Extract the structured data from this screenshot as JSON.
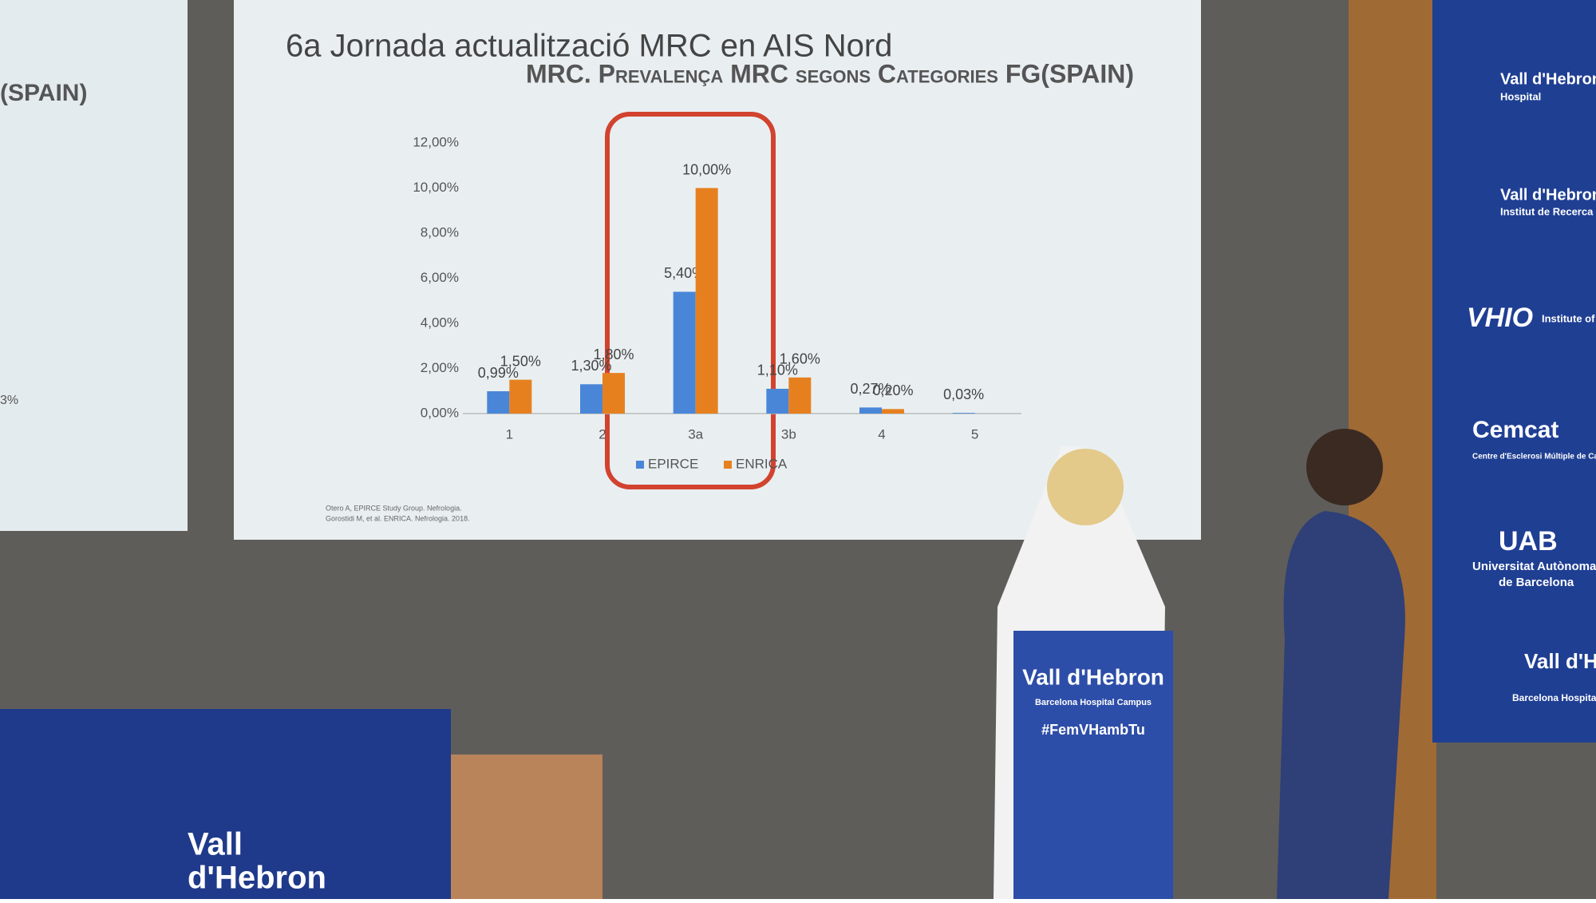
{
  "slide": {
    "title": "6a Jornada actualització MRC en AIS Nord",
    "references": [
      "Otero A, EPIRCE Study Group. Nefrologia.",
      "Gorostidi M, et al. ENRICA. Nefrologia. 2018."
    ],
    "left_slide": [
      "(SPAIN)",
      "3%"
    ]
  },
  "banners": [
    "Vall d'Hebron",
    "Hospital",
    "Vall d'Hebron",
    "Institut de Recerca",
    "VHIO",
    "Institute of Oncology",
    "Cemcat",
    "Centre d'Esclerosi Múltiple de Catalunya",
    "UAB",
    "Universitat Autònoma",
    "de Barcelona",
    "Vall d'Hebron",
    "Barcelona Hospital"
  ],
  "podium": [
    "Vall d'Hebron",
    "Barcelona Hospital Campus",
    "#FemVHambTu"
  ],
  "desk": [
    "Vall",
    "d'Hebron"
  ],
  "chart_data": {
    "type": "bar",
    "title": "MRC. Prevalença MRC segons Categories FG(SPAIN)",
    "categories": [
      "1",
      "2",
      "3a",
      "3b",
      "4",
      "5"
    ],
    "series": [
      {
        "name": "EPIRCE",
        "color": "#4a86d8",
        "values": [
          0.99,
          1.3,
          5.4,
          1.1,
          0.27,
          0.03
        ],
        "value_labels": [
          "0,99%",
          "1,30%",
          "5,40%",
          "1,10%",
          "0,27%",
          "0,03%"
        ]
      },
      {
        "name": "ENRICA",
        "color": "#e6801f",
        "values": [
          1.5,
          1.8,
          10.0,
          1.6,
          0.2,
          null
        ],
        "value_labels": [
          "1,50%",
          "1,80%",
          "10,00%",
          "1,60%",
          "0,20%",
          null
        ]
      }
    ],
    "ylim": [
      0,
      12
    ],
    "yticks": [
      {
        "value": 0,
        "label": "0,00%"
      },
      {
        "value": 2,
        "label": "2,00%"
      },
      {
        "value": 4,
        "label": "4,00%"
      },
      {
        "value": 6,
        "label": "6,00%"
      },
      {
        "value": 8,
        "label": "8,00%"
      },
      {
        "value": 10,
        "label": "10,00%"
      },
      {
        "value": 12,
        "label": "12,00%"
      }
    ],
    "legend": "bottom"
  }
}
